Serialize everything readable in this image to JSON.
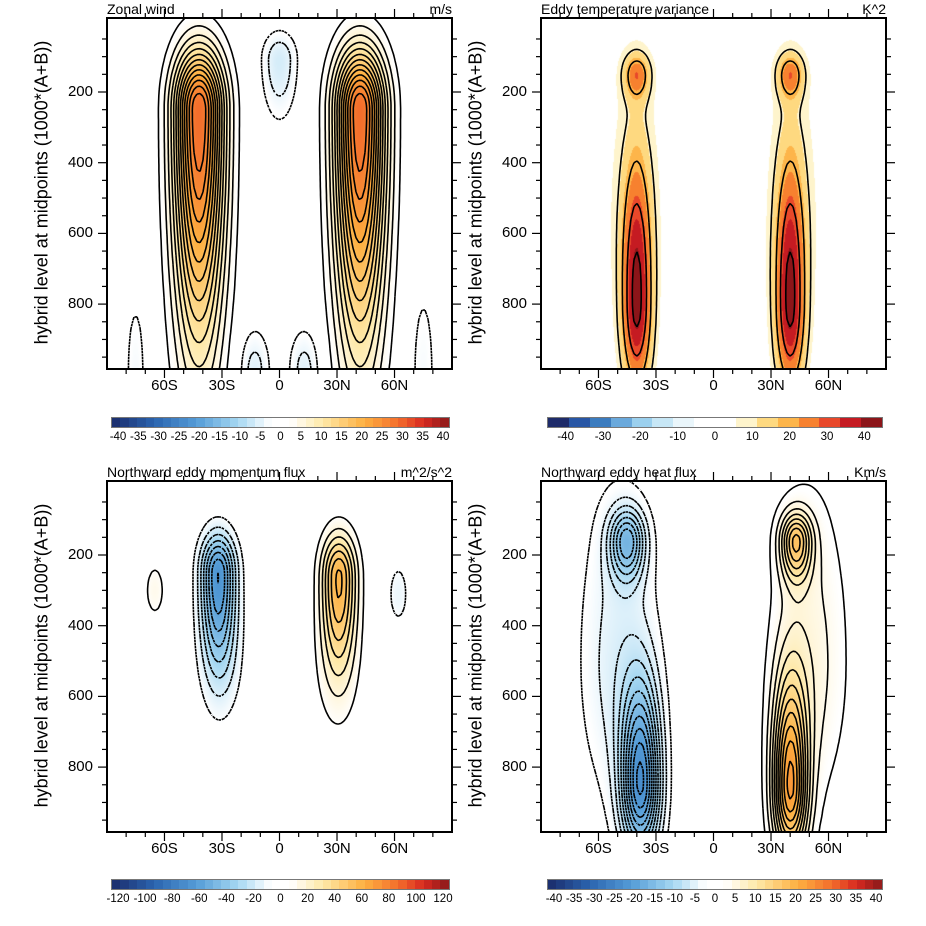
{
  "ylabel": "hybrid level at midpoints (1000*(A+B))",
  "chart_data": [
    {
      "type": "contour",
      "title": "Zonal wind",
      "units": "m/s",
      "ylabel": "hybrid level at midpoints (1000*(A+B))",
      "x_tick_values": [
        -60,
        -30,
        0,
        30,
        60
      ],
      "x_tick_labels": [
        "60S",
        "30S",
        "0",
        "30N",
        "60N"
      ],
      "y_ticks": [
        200,
        400,
        600,
        800
      ],
      "y_reversed": true,
      "contour_interval": 2,
      "negative_dashed": true,
      "shading": "continuous",
      "colorbar": {
        "range": [
          -40,
          40
        ],
        "labels": [
          "-40",
          "-35",
          "-30",
          "-25",
          "-20",
          "-15",
          "-10",
          "-5",
          "0",
          "5",
          "10",
          "15",
          "20",
          "25",
          "30",
          "35",
          "40"
        ]
      },
      "field_components": [
        {
          "lat": -42,
          "p": 250,
          "value": 28,
          "lat_spread": 13,
          "p_spread_up": 170,
          "p_spread_down": 650
        },
        {
          "lat": 42,
          "p": 250,
          "value": 28,
          "lat_spread": 13,
          "p_spread_up": 170,
          "p_spread_down": 650
        },
        {
          "lat": 0,
          "p": 110,
          "value": -6,
          "lat_spread": 9,
          "p_spread_up": 80,
          "p_spread_down": 160
        },
        {
          "lat": -13,
          "p": 990,
          "value": -5,
          "lat_spread": 8,
          "p_spread_up": 120,
          "p_spread_down": 100
        },
        {
          "lat": 13,
          "p": 990,
          "value": -5,
          "lat_spread": 8,
          "p_spread_up": 120,
          "p_spread_down": 100
        },
        {
          "lat": -75,
          "p": 990,
          "value": -3,
          "lat_spread": 6,
          "p_spread_up": 250,
          "p_spread_down": 100
        },
        {
          "lat": 75,
          "p": 990,
          "value": -3,
          "lat_spread": 7,
          "p_spread_up": 280,
          "p_spread_down": 100
        }
      ]
    },
    {
      "type": "contour",
      "title": "Eddy temperature variance",
      "units": "K^2",
      "ylabel": "hybrid level at midpoints (1000*(A+B))",
      "x_tick_values": [
        -60,
        -30,
        0,
        30,
        60
      ],
      "x_tick_labels": [
        "60S",
        "30S",
        "0",
        "30N",
        "60N"
      ],
      "y_ticks": [
        200,
        400,
        600,
        800
      ],
      "y_reversed": true,
      "contour_interval": 10,
      "negative_dashed": true,
      "shading": "discrete",
      "colorbar": {
        "range": [
          -45,
          45
        ],
        "label_values": [
          -40,
          -30,
          -20,
          -10,
          0,
          10,
          20,
          30,
          40
        ],
        "labels": [
          "-40",
          "-30",
          "-20",
          "-10",
          "0",
          "10",
          "20",
          "30",
          "40"
        ],
        "colors": [
          "#1e2b6a",
          "#2856a5",
          "#3b7cbf",
          "#6aa9dc",
          "#9bd0ee",
          "#c7e7f6",
          "#eaf6fb",
          "#ffffff",
          "#ffffff",
          "#fef4cc",
          "#fed980",
          "#fdb54a",
          "#f7812f",
          "#e8482a",
          "#c51b22",
          "#8c1519"
        ]
      },
      "field_components": [
        {
          "lat": -40,
          "p": 150,
          "value": 22,
          "lat_spread": 7,
          "p_spread_up": 60,
          "p_spread_down": 70
        },
        {
          "lat": 40,
          "p": 150,
          "value": 22,
          "lat_spread": 7,
          "p_spread_up": 60,
          "p_spread_down": 70
        },
        {
          "lat": -40,
          "p": 800,
          "value": 40,
          "lat_spread": 8,
          "p_spread_up": 400,
          "p_spread_down": 250
        },
        {
          "lat": 40,
          "p": 800,
          "value": 40,
          "lat_spread": 8,
          "p_spread_up": 400,
          "p_spread_down": 250
        },
        {
          "lat": -42,
          "p": 500,
          "value": 6,
          "lat_spread": 18,
          "p_spread_up": 500,
          "p_spread_down": 400
        },
        {
          "lat": 42,
          "p": 500,
          "value": 6,
          "lat_spread": 18,
          "p_spread_up": 500,
          "p_spread_down": 400
        }
      ]
    },
    {
      "type": "contour",
      "title": "Northward eddy momentum flux",
      "units": "m^2/s^2",
      "ylabel": "hybrid level at midpoints (1000*(A+B))",
      "x_tick_values": [
        -60,
        -30,
        0,
        30,
        60
      ],
      "x_tick_labels": [
        "60S",
        "30S",
        "0",
        "30N",
        "60N"
      ],
      "y_ticks": [
        200,
        400,
        600,
        800
      ],
      "y_reversed": true,
      "contour_interval": 8,
      "negative_dashed": true,
      "shading": "continuous",
      "colorbar": {
        "range": [
          -120,
          120
        ],
        "labels": [
          "-120",
          "-100",
          "-80",
          "-60",
          "-40",
          "-20",
          "0",
          "20",
          "40",
          "60",
          "80",
          "100",
          "120"
        ]
      },
      "field_components": [
        {
          "lat": -32,
          "p": 250,
          "value": -62,
          "lat_spread": 9,
          "p_spread_up": 110,
          "p_spread_down": 250
        },
        {
          "lat": 31,
          "p": 260,
          "value": 56,
          "lat_spread": 9,
          "p_spread_up": 120,
          "p_spread_down": 240
        },
        {
          "lat": -30,
          "p": 500,
          "value": -10,
          "lat_spread": 12,
          "p_spread_up": 200,
          "p_spread_down": 180
        },
        {
          "lat": 30,
          "p": 520,
          "value": 10,
          "lat_spread": 12,
          "p_spread_up": 200,
          "p_spread_down": 200
        },
        {
          "lat": -65,
          "p": 300,
          "value": 12,
          "lat_spread": 6,
          "p_spread_up": 90,
          "p_spread_down": 90
        },
        {
          "lat": 62,
          "p": 310,
          "value": -12,
          "lat_spread": 6,
          "p_spread_up": 100,
          "p_spread_down": 100
        }
      ]
    },
    {
      "type": "contour",
      "title": "Northward eddy heat flux",
      "units": "Km/s",
      "ylabel": "hybrid level at midpoints (1000*(A+B))",
      "x_tick_values": [
        -60,
        -30,
        0,
        30,
        60
      ],
      "x_tick_labels": [
        "60S",
        "30S",
        "0",
        "30N",
        "60N"
      ],
      "y_ticks": [
        200,
        400,
        600,
        800
      ],
      "y_reversed": true,
      "contour_interval": 2,
      "negative_dashed": true,
      "shading": "continuous",
      "colorbar": {
        "range": [
          -40,
          40
        ],
        "labels": [
          "-40",
          "-35",
          "-30",
          "-25",
          "-20",
          "-15",
          "-10",
          "-5",
          "0",
          "5",
          "10",
          "15",
          "20",
          "25",
          "30",
          "35",
          "40"
        ]
      },
      "field_components": [
        {
          "lat": -45,
          "p": 160,
          "value": -13,
          "lat_spread": 9,
          "p_spread_up": 90,
          "p_spread_down": 110
        },
        {
          "lat": -38,
          "p": 850,
          "value": -21,
          "lat_spread": 10,
          "p_spread_up": 280,
          "p_spread_down": 200
        },
        {
          "lat": -50,
          "p": 500,
          "value": -5,
          "lat_spread": 20,
          "p_spread_up": 500,
          "p_spread_down": 400
        },
        {
          "lat": 43,
          "p": 160,
          "value": 14,
          "lat_spread": 8,
          "p_spread_up": 80,
          "p_spread_down": 110
        },
        {
          "lat": 40,
          "p": 860,
          "value": 21,
          "lat_spread": 9,
          "p_spread_up": 300,
          "p_spread_down": 200
        },
        {
          "lat": 50,
          "p": 500,
          "value": 5,
          "lat_spread": 20,
          "p_spread_up": 500,
          "p_spread_down": 400
        }
      ]
    }
  ]
}
